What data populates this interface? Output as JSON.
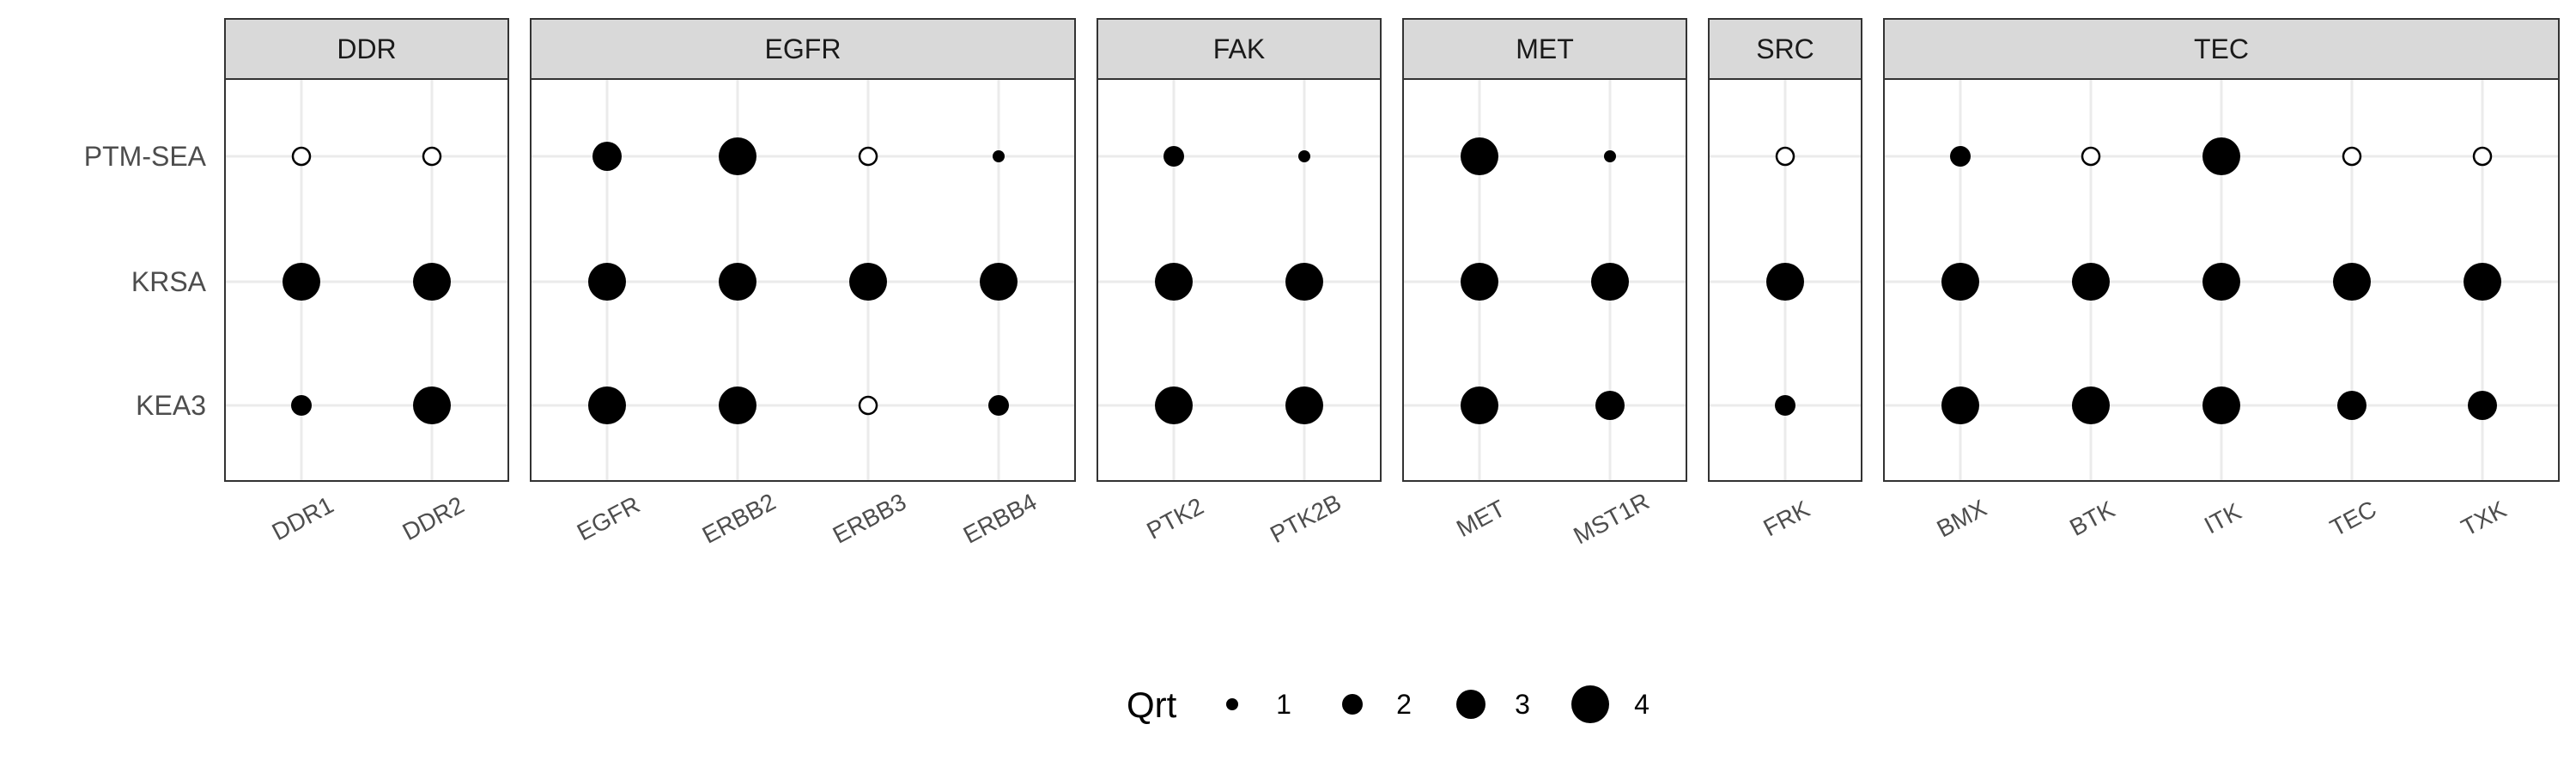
{
  "chart_data": {
    "type": "scatter",
    "subtype": "faceted-dot-plot",
    "title": "",
    "xlabel": "",
    "ylabel": "",
    "y_categories": [
      "PTM-SEA",
      "KRSA",
      "KEA3"
    ],
    "colors": {
      "point": "#000000",
      "strip_bg": "#d9d9d9",
      "panel_border": "#333333",
      "grid": "#ebebeb"
    },
    "grid": true,
    "legend": {
      "title": "Qrt",
      "position": "bottom",
      "levels": [
        1,
        2,
        3,
        4
      ]
    },
    "facets": [
      {
        "name": "DDR",
        "points": [
          {
            "x": "DDR1",
            "PTM-SEA": null,
            "KRSA": 4,
            "KEA3": 2
          },
          {
            "x": "DDR2",
            "PTM-SEA": null,
            "KRSA": 4,
            "KEA3": 4
          }
        ]
      },
      {
        "name": "EGFR",
        "points": [
          {
            "x": "EGFR",
            "PTM-SEA": 3,
            "KRSA": 4,
            "KEA3": 4
          },
          {
            "x": "ERBB2",
            "PTM-SEA": 4,
            "KRSA": 4,
            "KEA3": 4
          },
          {
            "x": "ERBB3",
            "PTM-SEA": null,
            "KRSA": 4,
            "KEA3": null
          },
          {
            "x": "ERBB4",
            "PTM-SEA": 1,
            "KRSA": 4,
            "KEA3": 2
          }
        ]
      },
      {
        "name": "FAK",
        "points": [
          {
            "x": "PTK2",
            "PTM-SEA": 2,
            "KRSA": 4,
            "KEA3": 4
          },
          {
            "x": "PTK2B",
            "PTM-SEA": 1,
            "KRSA": 4,
            "KEA3": 4
          }
        ]
      },
      {
        "name": "MET",
        "points": [
          {
            "x": "MET",
            "PTM-SEA": 4,
            "KRSA": 4,
            "KEA3": 4
          },
          {
            "x": "MST1R",
            "PTM-SEA": 1,
            "KRSA": 4,
            "KEA3": 3
          }
        ]
      },
      {
        "name": "SRC",
        "points": [
          {
            "x": "FRK",
            "PTM-SEA": null,
            "KRSA": 4,
            "KEA3": 2
          }
        ]
      },
      {
        "name": "TEC",
        "points": [
          {
            "x": "BMX",
            "PTM-SEA": 2,
            "KRSA": 4,
            "KEA3": 4
          },
          {
            "x": "BTK",
            "PTM-SEA": null,
            "KRSA": 4,
            "KEA3": 4
          },
          {
            "x": "ITK",
            "PTM-SEA": 4,
            "KRSA": 4,
            "KEA3": 4
          },
          {
            "x": "TEC",
            "PTM-SEA": null,
            "KRSA": 4,
            "KEA3": 3
          },
          {
            "x": "TXK",
            "PTM-SEA": null,
            "KRSA": 4,
            "KEA3": 3
          }
        ]
      }
    ]
  }
}
